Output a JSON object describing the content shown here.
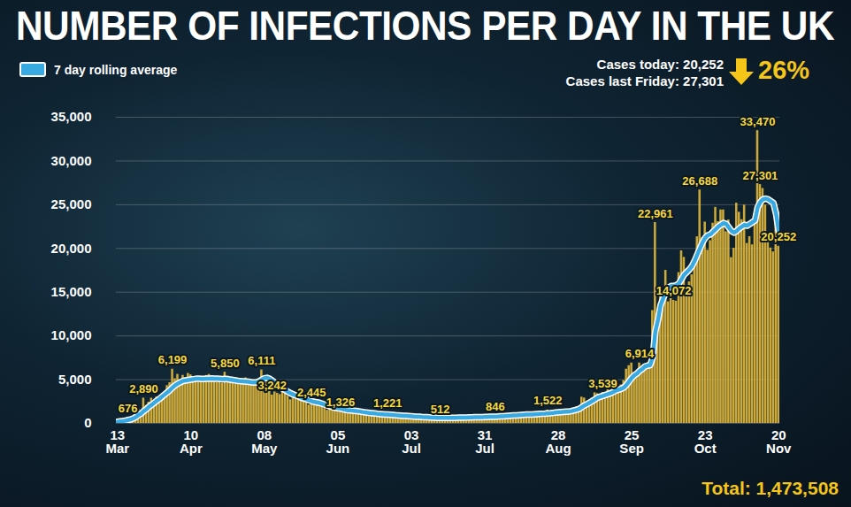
{
  "chart_data": {
    "type": "bar",
    "title": "NUMBER OF INFECTIONS PER DAY IN THE UK",
    "annotations": [
      "Cases today: 20,252",
      "Cases last Friday: 27,301",
      "26%",
      "Total: 1,473,508"
    ],
    "categories": [
      "13 Mar",
      null,
      null,
      null,
      null,
      null,
      null,
      null,
      null,
      null,
      null,
      null,
      null,
      null,
      null,
      null,
      null,
      null,
      null,
      null,
      null,
      null,
      null,
      null,
      null,
      null,
      null,
      null,
      "10 Apr",
      null,
      null,
      null,
      null,
      null,
      null,
      null,
      null,
      null,
      null,
      null,
      null,
      null,
      null,
      null,
      null,
      null,
      null,
      null,
      null,
      null,
      null,
      null,
      null,
      null,
      null,
      null,
      "08 May",
      null,
      null,
      null,
      null,
      null,
      null,
      null,
      null,
      null,
      null,
      null,
      null,
      null,
      null,
      null,
      null,
      null,
      null,
      null,
      null,
      null,
      null,
      null,
      null,
      null,
      null,
      null,
      "05 Jun",
      null,
      null,
      null,
      null,
      null,
      null,
      null,
      null,
      null,
      null,
      null,
      null,
      null,
      null,
      null,
      null,
      null,
      null,
      null,
      null,
      null,
      null,
      null,
      null,
      null,
      null,
      null,
      "03 Jul",
      null,
      null,
      null,
      null,
      null,
      null,
      null,
      null,
      null,
      null,
      null,
      null,
      null,
      null,
      null,
      null,
      null,
      null,
      null,
      null,
      null,
      null,
      null,
      null,
      null,
      null,
      null,
      "31 Jul",
      null,
      null,
      null,
      null,
      null,
      null,
      null,
      null,
      null,
      null,
      null,
      null,
      null,
      null,
      null,
      null,
      null,
      null,
      null,
      null,
      null,
      null,
      null,
      null,
      null,
      null,
      null,
      "28 Aug",
      null,
      null,
      null,
      null,
      null,
      null,
      null,
      null,
      null,
      null,
      null,
      null,
      null,
      null,
      null,
      null,
      null,
      null,
      null,
      null,
      null,
      null,
      null,
      null,
      null,
      null,
      null,
      "25 Sep",
      null,
      null,
      null,
      null,
      null,
      null,
      null,
      null,
      null,
      null,
      null,
      null,
      null,
      null,
      null,
      null,
      null,
      null,
      null,
      null,
      null,
      null,
      null,
      null,
      null,
      null,
      null,
      "23 Oct",
      null,
      null,
      null,
      null,
      null,
      null,
      null,
      null,
      null,
      null,
      null,
      null,
      null,
      null,
      null,
      null,
      null,
      null,
      null,
      null,
      null,
      null,
      null,
      null,
      null,
      null,
      null,
      "20 Nov"
    ],
    "series": [
      {
        "type": "bar",
        "color": "#dcb53c",
        "values": [
          208,
          342,
          251,
          152,
          676,
          643,
          714,
          1035,
          1650,
          1233,
          2890,
          2050,
          2430,
          2885,
          2546,
          3010,
          2630,
          2750,
          3250,
          4320,
          4650,
          6199,
          5100,
          5600,
          4980,
          5490,
          5200,
          5710,
          5550,
          5230,
          4950,
          4710,
          4960,
          5050,
          5480,
          5600,
          5220,
          4900,
          4670,
          4800,
          4600,
          5850,
          5380,
          5100,
          4740,
          4470,
          4520,
          4800,
          5050,
          5200,
          4800,
          4460,
          4290,
          4510,
          5100,
          6111,
          5300,
          4700,
          4100,
          3242,
          3600,
          3450,
          3300,
          3560,
          3450,
          3100,
          2700,
          2900,
          3000,
          2780,
          2600,
          2950,
          2420,
          2100,
          2445,
          2300,
          2350,
          2200,
          2050,
          1700,
          1500,
          1600,
          1700,
          1800,
          1650,
          1326,
          1400,
          1200,
          1350,
          1450,
          1400,
          1300,
          1250,
          1100,
          1000,
          1150,
          1200,
          1150,
          1100,
          1000,
          950,
          850,
          950,
          1221,
          1000,
          950,
          850,
          800,
          700,
          780,
          830,
          800,
          760,
          650,
          600,
          550,
          620,
          700,
          650,
          620,
          580,
          550,
          500,
          512,
          600,
          650,
          680,
          640,
          600,
          580,
          640,
          700,
          720,
          750,
          700,
          680,
          620,
          700,
          760,
          800,
          850,
          750,
          700,
          650,
          846,
          900,
          950,
          870,
          800,
          750,
          1000,
          1050,
          1050,
          1100,
          1000,
          1000,
          1050,
          900,
          1100,
          1200,
          1150,
          1250,
          1100,
          1000,
          1522,
          1200,
          1300,
          1500,
          1400,
          1250,
          1100,
          1400,
          1300,
          1500,
          1700,
          1900,
          1800,
          3000,
          2900,
          2500,
          2650,
          2900,
          3500,
          3400,
          3300,
          3539,
          3100,
          3900,
          3400,
          4300,
          4400,
          3900,
          4400,
          4900,
          6200,
          6600,
          6900,
          5700,
          5600,
          6914,
          6400,
          6700,
          6500,
          6800,
          12900,
          22961,
          12600,
          14500,
          14162,
          17500,
          13900,
          15100,
          14072,
          13972,
          17234,
          19724,
          18980,
          15650,
          16171,
          16982,
          18804,
          21331,
          26688,
          21242,
          23012,
          19790,
          20890,
          22885,
          24701,
          23065,
          24405,
          24405,
          21915,
          23254,
          18950,
          20018,
          25177,
          24141,
          23287,
          24957,
          20572,
          21350,
          20412,
          22950,
          33470,
          27301,
          26860,
          24962,
          21363,
          20051,
          19609,
          22915,
          20252
        ],
        "value_labels": [
          null,
          null,
          null,
          null,
          "676",
          null,
          null,
          null,
          null,
          null,
          "2,890",
          null,
          null,
          null,
          null,
          null,
          null,
          null,
          null,
          null,
          null,
          "6,199",
          null,
          null,
          null,
          null,
          null,
          null,
          null,
          null,
          null,
          null,
          null,
          null,
          null,
          null,
          null,
          null,
          null,
          null,
          null,
          "5,850",
          null,
          null,
          null,
          null,
          null,
          null,
          null,
          null,
          null,
          null,
          null,
          null,
          null,
          "6,111",
          null,
          null,
          null,
          "3,242",
          null,
          null,
          null,
          null,
          null,
          null,
          null,
          null,
          null,
          null,
          null,
          null,
          null,
          null,
          "2,445",
          null,
          null,
          null,
          null,
          null,
          null,
          null,
          null,
          null,
          null,
          "1,326",
          null,
          null,
          null,
          null,
          null,
          null,
          null,
          null,
          null,
          null,
          null,
          null,
          null,
          null,
          null,
          null,
          null,
          "1,221",
          null,
          null,
          null,
          null,
          null,
          null,
          null,
          null,
          null,
          null,
          null,
          null,
          null,
          null,
          null,
          null,
          null,
          null,
          null,
          "512",
          null,
          null,
          null,
          null,
          null,
          null,
          null,
          null,
          null,
          null,
          null,
          null,
          null,
          null,
          null,
          null,
          null,
          null,
          null,
          null,
          "846",
          null,
          null,
          null,
          null,
          null,
          null,
          null,
          null,
          null,
          null,
          null,
          null,
          null,
          null,
          null,
          null,
          null,
          null,
          null,
          "1,522",
          null,
          null,
          null,
          null,
          null,
          null,
          null,
          null,
          null,
          null,
          null,
          null,
          null,
          null,
          null,
          null,
          null,
          null,
          null,
          null,
          "3,539",
          null,
          null,
          null,
          null,
          null,
          null,
          null,
          null,
          null,
          null,
          null,
          null,
          null,
          "6,914",
          null,
          null,
          null,
          null,
          null,
          "22,961",
          null,
          null,
          null,
          null,
          null,
          null,
          "14,072",
          null,
          null,
          null,
          null,
          null,
          null,
          null,
          null,
          null,
          "26,688",
          null,
          null,
          null,
          null,
          null,
          null,
          null,
          null,
          null,
          null,
          null,
          null,
          null,
          null,
          null,
          null,
          null,
          null,
          null,
          null,
          null,
          "33,470",
          "27,301",
          null,
          null,
          null,
          null,
          null,
          null,
          "20,252"
        ]
      },
      {
        "name": "7 day rolling average",
        "type": "line",
        "color": "#39a9e1",
        "values": [
          180,
          220,
          260,
          300,
          380,
          450,
          560,
          720,
          950,
          1120,
          1400,
          1600,
          1900,
          2100,
          2350,
          2600,
          2800,
          3050,
          3300,
          3550,
          3800,
          4100,
          4350,
          4550,
          4700,
          4850,
          4900,
          4950,
          5000,
          5050,
          5100,
          5100,
          5080,
          5080,
          5100,
          5120,
          5130,
          5120,
          5100,
          5080,
          5050,
          5080,
          5060,
          5000,
          4950,
          4900,
          4850,
          4820,
          4800,
          4780,
          4750,
          4700,
          4680,
          4700,
          4800,
          5000,
          5150,
          5200,
          5100,
          4900,
          4650,
          4450,
          4200,
          3950,
          3800,
          3600,
          3450,
          3300,
          3200,
          3100,
          2950,
          2850,
          2750,
          2650,
          2550,
          2450,
          2400,
          2350,
          2250,
          2150,
          2050,
          1950,
          1850,
          1800,
          1750,
          1700,
          1620,
          1550,
          1500,
          1480,
          1450,
          1420,
          1380,
          1330,
          1280,
          1230,
          1200,
          1170,
          1140,
          1100,
          1070,
          1040,
          1010,
          1000,
          980,
          960,
          930,
          910,
          890,
          870,
          850,
          830,
          810,
          790,
          770,
          750,
          730,
          720,
          700,
          680,
          660,
          650,
          640,
          630,
          620,
          620,
          625,
          630,
          635,
          640,
          645,
          650,
          660,
          670,
          680,
          690,
          700,
          700,
          710,
          720,
          735,
          745,
          755,
          760,
          770,
          780,
          800,
          820,
          840,
          860,
          880,
          900,
          920,
          940,
          960,
          980,
          1000,
          1010,
          1020,
          1040,
          1060,
          1080,
          1100,
          1110,
          1150,
          1170,
          1200,
          1230,
          1260,
          1290,
          1310,
          1330,
          1350,
          1400,
          1480,
          1560,
          1650,
          1850,
          2050,
          2200,
          2380,
          2550,
          2750,
          2950,
          3050,
          3150,
          3250,
          3350,
          3450,
          3600,
          3750,
          3850,
          3950,
          4100,
          4400,
          4800,
          5200,
          5500,
          5700,
          6000,
          6200,
          6500,
          6600,
          6650,
          7500,
          10500,
          11800,
          13500,
          14300,
          15000,
          15500,
          15700,
          15700,
          15800,
          16000,
          16500,
          17000,
          17300,
          17600,
          18000,
          18600,
          19300,
          20000,
          20700,
          21200,
          21500,
          21600,
          21900,
          22200,
          22500,
          22700,
          22900,
          22800,
          22400,
          22000,
          21800,
          22000,
          22300,
          22500,
          22700,
          22600,
          22800,
          23000,
          23200,
          24700,
          25300,
          25600,
          25700,
          25600,
          25400,
          25200,
          24000,
          22000
        ]
      }
    ],
    "ylim": [
      0,
      35000
    ],
    "yticks": [
      0,
      {
        "value": 5000,
        "label": "5,000"
      },
      {
        "value": 10000,
        "label": "10,000"
      },
      {
        "value": 15000,
        "label": "15,000"
      },
      {
        "value": 20000,
        "label": "20,000"
      },
      {
        "value": 25000,
        "label": "25,000"
      },
      {
        "value": 30000,
        "label": "30,000"
      },
      {
        "value": 35000,
        "label": "35,000"
      }
    ],
    "grid": true,
    "legend": "top-left",
    "data_labels": true
  }
}
